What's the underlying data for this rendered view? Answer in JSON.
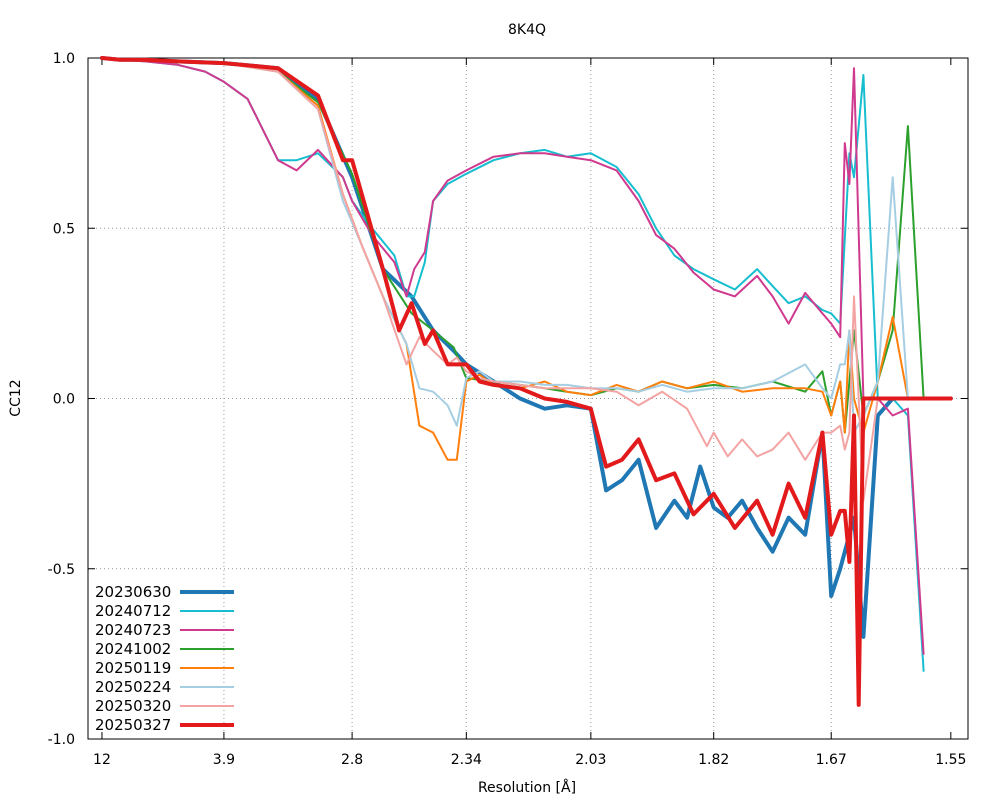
{
  "chart_data": {
    "type": "line",
    "title": "8K4Q",
    "xlabel": "Resolution [Å]",
    "ylabel": "CC12",
    "x_axis_quantity": "1/d^2",
    "x_ticks": [
      {
        "label": "12",
        "resolution": 12.0
      },
      {
        "label": "3.9",
        "resolution": 3.9
      },
      {
        "label": "2.8",
        "resolution": 2.8
      },
      {
        "label": "2.34",
        "resolution": 2.34
      },
      {
        "label": "2.03",
        "resolution": 2.03
      },
      {
        "label": "1.82",
        "resolution": 1.82
      },
      {
        "label": "1.67",
        "resolution": 1.67
      },
      {
        "label": "1.55",
        "resolution": 1.55
      }
    ],
    "ylim": [
      -1.0,
      1.0
    ],
    "y_ticks": [
      "-1.0",
      "-0.5",
      "0.0",
      "0.5",
      "1.0"
    ],
    "y_tick_values": [
      -1.0,
      -0.5,
      0.0,
      0.5,
      1.0
    ],
    "grid": true,
    "legend_position": "bottom-left",
    "series": [
      {
        "name": "20230630",
        "color": "#1f77b4",
        "width": 4,
        "x": [
          12.0,
          8.0,
          6.0,
          4.8,
          3.9,
          3.3,
          3.0,
          2.8,
          2.65,
          2.53,
          2.45,
          2.38,
          2.34,
          2.26,
          2.19,
          2.13,
          2.08,
          2.03,
          2.0,
          1.97,
          1.94,
          1.91,
          1.88,
          1.86,
          1.84,
          1.82,
          1.8,
          1.78,
          1.76,
          1.74,
          1.72,
          1.7,
          1.68,
          1.67,
          1.66,
          1.645,
          1.635,
          1.62,
          1.605,
          1.59,
          1.55
        ],
        "y": [
          1.0,
          0.995,
          0.995,
          0.99,
          0.985,
          0.97,
          0.88,
          0.65,
          0.38,
          0.3,
          0.2,
          0.14,
          0.1,
          0.05,
          0.0,
          -0.03,
          -0.02,
          -0.03,
          -0.27,
          -0.24,
          -0.18,
          -0.38,
          -0.3,
          -0.35,
          -0.2,
          -0.32,
          -0.35,
          -0.3,
          -0.38,
          -0.45,
          -0.35,
          -0.4,
          -0.1,
          -0.58,
          -0.5,
          -0.35,
          -0.7,
          -0.05,
          0.0,
          0.0,
          0.0
        ]
      },
      {
        "name": "20240712",
        "color": "#17becf",
        "width": 2,
        "x": [
          12.0,
          8.0,
          6.0,
          4.8,
          4.2,
          3.9,
          3.6,
          3.3,
          3.15,
          3.0,
          2.85,
          2.8,
          2.7,
          2.6,
          2.55,
          2.52,
          2.48,
          2.45,
          2.4,
          2.34,
          2.26,
          2.19,
          2.13,
          2.08,
          2.03,
          1.98,
          1.94,
          1.91,
          1.88,
          1.85,
          1.82,
          1.79,
          1.76,
          1.74,
          1.72,
          1.7,
          1.68,
          1.67,
          1.66,
          1.65,
          1.645,
          1.635,
          1.62,
          1.605,
          1.59,
          1.575
        ],
        "y": [
          1.0,
          0.995,
          0.99,
          0.98,
          0.96,
          0.93,
          0.88,
          0.7,
          0.7,
          0.72,
          0.65,
          0.58,
          0.5,
          0.42,
          0.3,
          0.3,
          0.4,
          0.58,
          0.63,
          0.66,
          0.7,
          0.72,
          0.73,
          0.71,
          0.72,
          0.68,
          0.6,
          0.5,
          0.42,
          0.38,
          0.35,
          0.32,
          0.38,
          0.33,
          0.28,
          0.3,
          0.26,
          0.25,
          0.22,
          0.72,
          0.65,
          0.95,
          0.0,
          0.0,
          -0.05,
          -0.8
        ]
      },
      {
        "name": "20240723",
        "color": "#cf3a8f",
        "width": 2,
        "x": [
          12.0,
          8.0,
          6.0,
          4.8,
          4.2,
          3.9,
          3.6,
          3.3,
          3.15,
          3.0,
          2.85,
          2.8,
          2.7,
          2.6,
          2.55,
          2.52,
          2.48,
          2.45,
          2.4,
          2.34,
          2.26,
          2.19,
          2.13,
          2.08,
          2.03,
          1.98,
          1.94,
          1.91,
          1.88,
          1.85,
          1.82,
          1.79,
          1.76,
          1.74,
          1.72,
          1.7,
          1.68,
          1.67,
          1.66,
          1.655,
          1.65,
          1.645,
          1.635,
          1.62,
          1.605,
          1.59,
          1.575
        ],
        "y": [
          1.0,
          0.995,
          0.99,
          0.98,
          0.96,
          0.93,
          0.88,
          0.7,
          0.67,
          0.73,
          0.65,
          0.58,
          0.48,
          0.4,
          0.3,
          0.38,
          0.43,
          0.58,
          0.64,
          0.67,
          0.71,
          0.72,
          0.72,
          0.71,
          0.7,
          0.67,
          0.58,
          0.48,
          0.44,
          0.37,
          0.32,
          0.3,
          0.36,
          0.3,
          0.22,
          0.31,
          0.25,
          0.22,
          0.18,
          0.75,
          0.63,
          0.97,
          0.0,
          0.0,
          -0.05,
          -0.03,
          -0.75
        ]
      },
      {
        "name": "20241002",
        "color": "#2ca02c",
        "width": 2,
        "x": [
          12.0,
          8.0,
          6.0,
          4.8,
          3.9,
          3.3,
          3.0,
          2.8,
          2.65,
          2.53,
          2.45,
          2.38,
          2.34,
          2.26,
          2.19,
          2.13,
          2.08,
          2.03,
          1.98,
          1.94,
          1.9,
          1.86,
          1.82,
          1.78,
          1.74,
          1.7,
          1.68,
          1.67,
          1.66,
          1.655,
          1.65,
          1.645,
          1.635,
          1.62,
          1.605,
          1.59,
          1.575
        ],
        "y": [
          1.0,
          0.995,
          0.995,
          0.99,
          0.985,
          0.96,
          0.87,
          0.66,
          0.38,
          0.25,
          0.2,
          0.15,
          0.06,
          0.05,
          0.04,
          0.03,
          0.02,
          0.01,
          0.03,
          0.02,
          0.05,
          0.03,
          0.04,
          0.03,
          0.05,
          0.02,
          0.08,
          -0.05,
          0.05,
          -0.1,
          0.05,
          0.2,
          -0.05,
          0.05,
          0.2,
          0.8,
          0.0
        ]
      },
      {
        "name": "20250119",
        "color": "#ff7f0e",
        "width": 2,
        "x": [
          12.0,
          8.0,
          6.0,
          4.8,
          3.9,
          3.3,
          3.0,
          2.85,
          2.75,
          2.65,
          2.55,
          2.5,
          2.45,
          2.4,
          2.37,
          2.34,
          2.3,
          2.26,
          2.19,
          2.13,
          2.08,
          2.03,
          1.98,
          1.94,
          1.9,
          1.86,
          1.82,
          1.78,
          1.74,
          1.7,
          1.68,
          1.67,
          1.66,
          1.655,
          1.65,
          1.645,
          1.635,
          1.62,
          1.605,
          1.59,
          1.575
        ],
        "y": [
          1.0,
          0.995,
          0.995,
          0.99,
          0.985,
          0.96,
          0.86,
          0.6,
          0.45,
          0.3,
          0.16,
          -0.08,
          -0.1,
          -0.18,
          -0.18,
          0.05,
          0.07,
          0.04,
          0.03,
          0.05,
          0.02,
          0.01,
          0.04,
          0.02,
          0.05,
          0.03,
          0.05,
          0.02,
          0.03,
          0.03,
          0.02,
          -0.05,
          0.05,
          -0.1,
          0.2,
          0.0,
          -0.1,
          0.05,
          0.24,
          0.0,
          0.0
        ]
      },
      {
        "name": "20250224",
        "color": "#a6cee3",
        "width": 2,
        "x": [
          12.0,
          8.0,
          6.0,
          4.8,
          3.9,
          3.3,
          3.0,
          2.85,
          2.75,
          2.65,
          2.55,
          2.5,
          2.45,
          2.4,
          2.37,
          2.34,
          2.3,
          2.26,
          2.19,
          2.13,
          2.08,
          2.03,
          1.98,
          1.94,
          1.9,
          1.86,
          1.82,
          1.78,
          1.74,
          1.7,
          1.68,
          1.67,
          1.66,
          1.655,
          1.65,
          1.645,
          1.635,
          1.62,
          1.605,
          1.59,
          1.575
        ],
        "y": [
          1.0,
          0.995,
          0.995,
          0.99,
          0.985,
          0.96,
          0.85,
          0.58,
          0.45,
          0.3,
          0.16,
          0.03,
          0.02,
          -0.02,
          -0.08,
          0.06,
          0.08,
          0.05,
          0.05,
          0.04,
          0.04,
          0.03,
          0.03,
          0.02,
          0.04,
          0.02,
          0.03,
          0.03,
          0.05,
          0.1,
          0.03,
          0.0,
          0.1,
          0.1,
          0.2,
          -0.1,
          -0.05,
          0.05,
          0.65,
          0.0,
          0.0
        ]
      },
      {
        "name": "20250320",
        "color": "#f4a3a3",
        "width": 2,
        "x": [
          12.0,
          8.0,
          6.0,
          4.8,
          3.9,
          3.3,
          3.0,
          2.85,
          2.75,
          2.65,
          2.55,
          2.5,
          2.45,
          2.4,
          2.37,
          2.34,
          2.3,
          2.26,
          2.19,
          2.13,
          2.08,
          2.03,
          1.98,
          1.94,
          1.9,
          1.86,
          1.83,
          1.82,
          1.8,
          1.78,
          1.76,
          1.74,
          1.72,
          1.7,
          1.68,
          1.67,
          1.66,
          1.655,
          1.65,
          1.645,
          1.635,
          1.62
        ],
        "y": [
          1.0,
          0.995,
          0.995,
          0.99,
          0.985,
          0.96,
          0.85,
          0.6,
          0.45,
          0.3,
          0.1,
          0.18,
          0.14,
          0.1,
          0.12,
          0.08,
          0.06,
          0.05,
          0.04,
          0.03,
          0.03,
          0.03,
          0.02,
          -0.02,
          0.02,
          -0.03,
          -0.14,
          -0.1,
          -0.17,
          -0.12,
          -0.17,
          -0.15,
          -0.1,
          -0.18,
          -0.1,
          -0.1,
          -0.08,
          -0.15,
          -0.1,
          0.3,
          -0.3,
          0.0
        ]
      },
      {
        "name": "20250327",
        "color": "#e31a1c",
        "width": 4,
        "x": [
          12.0,
          8.0,
          6.0,
          4.8,
          3.9,
          3.3,
          3.0,
          2.85,
          2.8,
          2.75,
          2.65,
          2.58,
          2.53,
          2.48,
          2.45,
          2.4,
          2.34,
          2.3,
          2.26,
          2.19,
          2.13,
          2.08,
          2.03,
          2.0,
          1.97,
          1.94,
          1.91,
          1.88,
          1.85,
          1.82,
          1.79,
          1.76,
          1.74,
          1.72,
          1.7,
          1.68,
          1.67,
          1.66,
          1.655,
          1.65,
          1.645,
          1.64,
          1.635,
          1.62,
          1.605,
          1.59,
          1.55
        ],
        "y": [
          1.0,
          0.995,
          0.995,
          0.99,
          0.985,
          0.97,
          0.89,
          0.7,
          0.7,
          0.6,
          0.38,
          0.2,
          0.28,
          0.16,
          0.2,
          0.1,
          0.1,
          0.05,
          0.04,
          0.03,
          0.0,
          -0.01,
          -0.03,
          -0.2,
          -0.18,
          -0.12,
          -0.24,
          -0.22,
          -0.34,
          -0.28,
          -0.38,
          -0.3,
          -0.4,
          -0.25,
          -0.35,
          -0.1,
          -0.4,
          -0.33,
          -0.33,
          -0.48,
          -0.05,
          -0.9,
          0.0,
          0.0,
          0.0,
          0.0,
          0.0
        ]
      }
    ]
  }
}
